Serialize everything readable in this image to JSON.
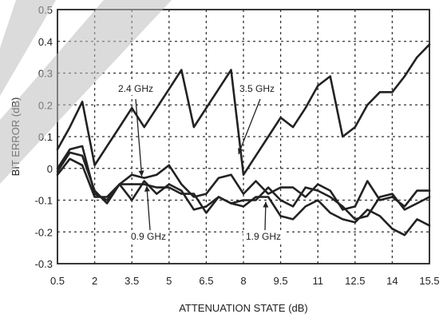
{
  "chart_data": {
    "type": "line",
    "title": "",
    "xlabel": "ATTENUATION STATE (dB)",
    "ylabel": "BIT ERROR (dB)",
    "xlim": [
      0.5,
      15.5
    ],
    "ylim": [
      -0.3,
      0.5
    ],
    "xticks": [
      0.5,
      2,
      3.5,
      5,
      6.5,
      8,
      9.5,
      11,
      12.5,
      14,
      15.5
    ],
    "xtick_labels": [
      "0.5",
      "2",
      "3.5",
      "5",
      "6.5",
      "8",
      "9.5",
      "11",
      "12.5",
      "14",
      "15.5"
    ],
    "yticks": [
      -0.3,
      -0.2,
      -0.1,
      0,
      0.1,
      0.2,
      0.3,
      0.4,
      0.5
    ],
    "ytick_labels": [
      "-0.3",
      "-0.2",
      "-0.1",
      "0",
      "0.1",
      "0.2",
      "0.3",
      "0.4",
      "0.5"
    ],
    "grid": true,
    "series": [
      {
        "name": "3.5 GHz",
        "x": [
          0.5,
          1.0,
          1.5,
          2.0,
          2.5,
          3.0,
          3.5,
          4.0,
          4.5,
          5.0,
          5.5,
          6.0,
          6.5,
          7.0,
          7.5,
          8.0,
          8.5,
          9.0,
          9.5,
          10.0,
          10.5,
          11.0,
          11.5,
          12.0,
          12.5,
          13.0,
          13.5,
          14.0,
          14.5,
          15.0,
          15.5
        ],
        "values": [
          0.06,
          0.13,
          0.21,
          0.01,
          0.07,
          0.13,
          0.19,
          0.13,
          0.19,
          0.25,
          0.31,
          0.13,
          0.19,
          0.25,
          0.31,
          -0.02,
          0.04,
          0.1,
          0.16,
          0.13,
          0.19,
          0.26,
          0.29,
          0.1,
          0.13,
          0.2,
          0.24,
          0.24,
          0.29,
          0.35,
          0.39
        ],
        "color": "#222222"
      },
      {
        "name": "2.4 GHz",
        "x": [
          0.5,
          1.0,
          1.5,
          2.0,
          2.5,
          3.0,
          3.5,
          4.0,
          4.5,
          5.0,
          5.5,
          6.0,
          6.5,
          7.0,
          7.5,
          8.0,
          8.5,
          9.0,
          9.5,
          10.0,
          10.5,
          11.0,
          11.5,
          12.0,
          12.5,
          13.0,
          13.5,
          14.0,
          14.5,
          15.0,
          15.5
        ],
        "values": [
          0.0,
          0.06,
          0.07,
          -0.08,
          -0.1,
          -0.05,
          -0.02,
          -0.03,
          -0.02,
          0.01,
          -0.05,
          -0.09,
          -0.08,
          -0.03,
          -0.02,
          -0.08,
          -0.04,
          -0.08,
          -0.06,
          -0.06,
          -0.09,
          -0.05,
          -0.07,
          -0.13,
          -0.12,
          -0.04,
          -0.1,
          -0.09,
          -0.12,
          -0.07,
          -0.07
        ],
        "color": "#222222"
      },
      {
        "name": "0.9 GHz",
        "x": [
          0.5,
          1.0,
          1.5,
          2.0,
          2.5,
          3.0,
          3.5,
          4.0,
          4.5,
          5.0,
          5.5,
          6.0,
          6.5,
          7.0,
          7.5,
          8.0,
          8.5,
          9.0,
          9.5,
          10.0,
          10.5,
          11.0,
          11.5,
          12.0,
          12.5,
          13.0,
          13.5,
          14.0,
          14.5,
          15.0,
          15.5
        ],
        "values": [
          -0.01,
          0.05,
          0.04,
          -0.07,
          -0.11,
          -0.05,
          -0.05,
          -0.05,
          -0.06,
          -0.06,
          -0.08,
          -0.08,
          -0.14,
          -0.09,
          -0.11,
          -0.1,
          -0.1,
          -0.06,
          -0.1,
          -0.12,
          -0.06,
          -0.07,
          -0.09,
          -0.12,
          -0.16,
          -0.15,
          -0.09,
          -0.08,
          -0.13,
          -0.11,
          -0.09
        ],
        "color": "#222222"
      },
      {
        "name": "1.9 GHz",
        "x": [
          0.5,
          1.0,
          1.5,
          2.0,
          2.5,
          3.0,
          3.5,
          4.0,
          4.5,
          5.0,
          5.5,
          6.0,
          6.5,
          7.0,
          7.5,
          8.0,
          8.5,
          9.0,
          9.5,
          10.0,
          10.5,
          11.0,
          11.5,
          12.0,
          12.5,
          13.0,
          13.5,
          14.0,
          14.5,
          15.0,
          15.5
        ],
        "values": [
          -0.02,
          0.03,
          0.01,
          -0.09,
          -0.09,
          -0.05,
          -0.1,
          -0.04,
          -0.08,
          -0.05,
          -0.07,
          -0.13,
          -0.12,
          -0.09,
          -0.11,
          -0.12,
          -0.09,
          -0.09,
          -0.15,
          -0.16,
          -0.12,
          -0.1,
          -0.14,
          -0.16,
          -0.17,
          -0.13,
          -0.15,
          -0.19,
          -0.21,
          -0.16,
          -0.18
        ],
        "color": "#222222"
      }
    ],
    "annotations": [
      {
        "text": "2.4 GHz",
        "target_x": 3.9,
        "target_y": -0.03
      },
      {
        "text": "3.5 GHz",
        "target_x": 7.8,
        "target_y": 0.04
      },
      {
        "text": "0.9 GHz",
        "target_x": 4.1,
        "target_y": -0.05
      },
      {
        "text": "1.9 GHz",
        "target_x": 8.9,
        "target_y": -0.1
      }
    ]
  }
}
